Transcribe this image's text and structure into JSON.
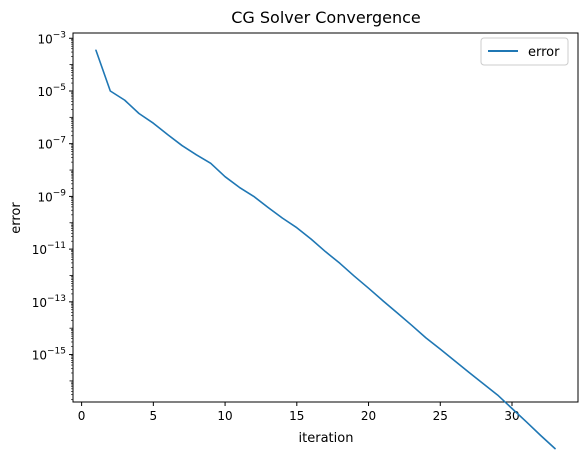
{
  "chart_data": {
    "type": "line",
    "title": "CG Solver Convergence",
    "xlabel": "iteration",
    "ylabel": "error",
    "xlim": [
      -0.6,
      34.6
    ],
    "ylim_log10": [
      -16.8,
      -2.8
    ],
    "yscale": "log",
    "grid": false,
    "legend_position": "top-right",
    "x_ticks": [
      0,
      5,
      10,
      15,
      20,
      25,
      30
    ],
    "y_ticks": [
      {
        "exp": -3,
        "base": "10",
        "sup": "−3"
      },
      {
        "exp": -5,
        "base": "10",
        "sup": "−5"
      },
      {
        "exp": -7,
        "base": "10",
        "sup": "−7"
      },
      {
        "exp": -9,
        "base": "10",
        "sup": "−9"
      },
      {
        "exp": -11,
        "base": "10",
        "sup": "−11"
      },
      {
        "exp": -13,
        "base": "10",
        "sup": "−13"
      },
      {
        "exp": -15,
        "base": "10",
        "sup": "−15"
      }
    ],
    "series": [
      {
        "name": "error",
        "color": "#1f77b4",
        "x": [
          1,
          2,
          3,
          4,
          5,
          6,
          7,
          8,
          9,
          10,
          11,
          12,
          13,
          14,
          15,
          16,
          17,
          18,
          19,
          20,
          21,
          22,
          23,
          24,
          25,
          26,
          27,
          28,
          29,
          30,
          31,
          32,
          33
        ],
        "y": [
          0.00035,
          1e-05,
          4.5e-06,
          1.4e-06,
          6e-07,
          2.2e-07,
          8.5e-08,
          3.8e-08,
          1.8e-08,
          5.6e-09,
          2.2e-09,
          1e-09,
          3.8e-10,
          1.5e-10,
          6.5e-11,
          2.4e-11,
          8e-12,
          2.9e-12,
          9.5e-13,
          3.3e-13,
          1.1e-13,
          3.8e-14,
          1.3e-14,
          4.3e-15,
          1.6e-15,
          5.8e-16,
          2.1e-16,
          7.8e-17,
          2.9e-17,
          9e-18,
          2.8e-18,
          8.5e-19,
          2.7e-19
        ]
      }
    ]
  }
}
